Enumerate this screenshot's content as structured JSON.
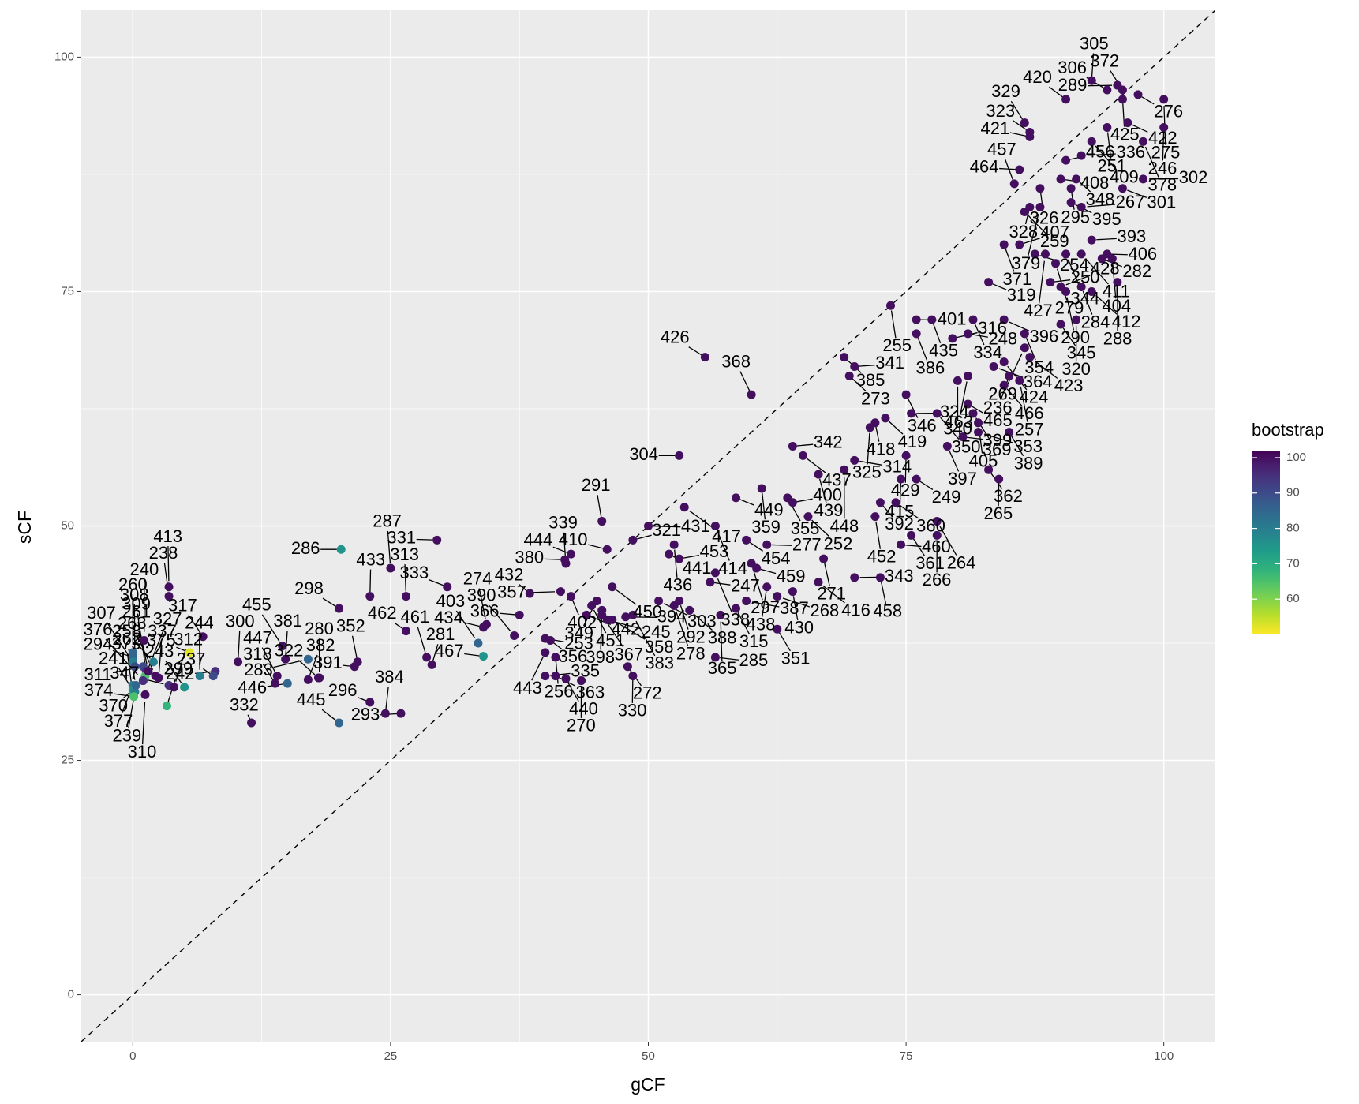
{
  "chart_data": {
    "type": "scatter",
    "x_label": "gCF",
    "y_label": "sCF",
    "xlim": [
      -5,
      105
    ],
    "ylim": [
      -5,
      105
    ],
    "xticks": [
      0,
      25,
      50,
      75,
      100
    ],
    "yticks": [
      0,
      25,
      50,
      75,
      100
    ],
    "grid": true,
    "identity_line": true,
    "colormap": "viridis",
    "colorbar": {
      "title": "bootstrap",
      "lim": [
        50,
        102
      ],
      "ticks": [
        60,
        70,
        80,
        90,
        100
      ]
    },
    "point_labels": [
      "294",
      "307",
      "308",
      "260",
      "377",
      "241",
      "373",
      "239",
      "374",
      "262",
      "240",
      "311",
      "309",
      "413",
      "375",
      "258",
      "238",
      "327",
      "370",
      "263",
      "299",
      "310",
      "376",
      "261",
      "337",
      "347",
      "243",
      "312",
      "242",
      "237",
      "244",
      "300",
      "317",
      "455",
      "381",
      "283",
      "322",
      "318",
      "382",
      "446",
      "447",
      "332",
      "286",
      "298",
      "287",
      "433",
      "391",
      "462",
      "313",
      "331",
      "333",
      "352",
      "384",
      "296",
      "445",
      "280",
      "293",
      "467",
      "461",
      "281",
      "434",
      "274",
      "403",
      "366",
      "432",
      "390",
      "443",
      "253",
      "356",
      "256",
      "335",
      "363",
      "440",
      "270",
      "380",
      "402",
      "339",
      "357",
      "442",
      "451",
      "349",
      "444",
      "450",
      "291",
      "321",
      "410",
      "367",
      "398",
      "245",
      "358",
      "383",
      "394",
      "303",
      "272",
      "330",
      "431",
      "417",
      "436",
      "453",
      "441",
      "292",
      "278",
      "285",
      "388",
      "338",
      "247",
      "449",
      "454",
      "365",
      "387",
      "315",
      "414",
      "304",
      "426",
      "368",
      "359",
      "400",
      "355",
      "297",
      "277",
      "459",
      "351",
      "438",
      "268",
      "416",
      "430",
      "342",
      "437",
      "439",
      "448",
      "314",
      "252",
      "271",
      "343",
      "392",
      "452",
      "458",
      "385",
      "273",
      "418",
      "341",
      "419",
      "255",
      "325",
      "324",
      "346",
      "415",
      "460",
      "360",
      "361",
      "429",
      "249",
      "350",
      "340",
      "399",
      "397",
      "264",
      "266",
      "401",
      "386",
      "435",
      "316",
      "248",
      "334",
      "463",
      "364",
      "369",
      "405",
      "353",
      "465",
      "362",
      "265",
      "389",
      "466",
      "236",
      "319",
      "396",
      "354",
      "269",
      "423",
      "424",
      "257",
      "407",
      "371",
      "259",
      "328",
      "254",
      "279",
      "427",
      "428",
      "345",
      "290",
      "320",
      "250",
      "412",
      "404",
      "393",
      "282",
      "284",
      "288",
      "406",
      "411",
      "344",
      "408",
      "464",
      "457",
      "295",
      "267",
      "395",
      "326",
      "421",
      "323",
      "348",
      "379",
      "336",
      "409",
      "251",
      "456",
      "420",
      "329",
      "305",
      "306",
      "372",
      "425",
      "289",
      "276",
      "275",
      "246",
      "422",
      "301",
      "378",
      "302"
    ],
    "x": [
      0,
      0,
      0.2,
      0,
      0,
      0,
      0,
      0.2,
      0.1,
      0.3,
      1.1,
      1,
      1.3,
      3.5,
      5.5,
      2,
      3.5,
      1.2,
      1,
      2.2,
      3.3,
      1.2,
      1,
      1.5,
      2.5,
      3.5,
      5,
      4,
      8,
      7.8,
      6.5,
      10.2,
      6.8,
      14.5,
      14.8,
      17,
      18,
      13.8,
      17,
      15,
      14,
      11.5,
      20.2,
      20,
      25,
      23,
      21.5,
      26.5,
      26.5,
      29.5,
      30.5,
      21.8,
      24.5,
      23,
      20,
      18.1,
      26,
      34,
      28.5,
      29,
      34,
      34.3,
      33.5,
      37.5,
      38.5,
      37,
      40,
      40,
      40.5,
      41,
      40,
      41,
      42,
      43.5,
      41.9,
      42.5,
      42,
      41.5,
      44,
      44.5,
      45,
      42.5,
      46.5,
      45.5,
      48.5,
      46,
      45.5,
      45.5,
      46,
      46.5,
      48.5,
      47.8,
      51,
      48,
      48.5,
      50,
      53.5,
      52.5,
      53,
      52,
      53,
      52.5,
      56.5,
      54,
      56.5,
      56,
      58.5,
      59.5,
      57,
      59.5,
      58.5,
      56.5,
      53,
      55.5,
      60,
      61,
      64,
      63.5,
      60,
      61.5,
      60.5,
      62.5,
      61.5,
      62.5,
      66.5,
      64,
      64,
      65,
      66.5,
      69,
      70,
      65.5,
      67,
      70,
      72.5,
      72,
      72.5,
      69,
      69.5,
      72,
      70,
      73,
      73.5,
      71.5,
      75.5,
      75,
      74.5,
      74.5,
      74,
      75.5,
      75,
      76,
      78,
      80,
      80.5,
      79,
      78,
      78,
      76,
      76,
      77.5,
      79.5,
      81,
      81.5,
      81,
      83.5,
      81.5,
      82,
      82,
      81,
      83,
      84,
      85,
      84.5,
      85,
      83,
      84.5,
      86.5,
      86.5,
      87,
      84.5,
      86,
      86,
      84.5,
      86.5,
      87,
      87.5,
      89.5,
      88.5,
      90,
      90,
      90.5,
      91.5,
      89,
      93,
      95,
      93,
      94,
      92,
      95.5,
      94.5,
      92,
      90.5,
      90,
      86,
      85.5,
      91,
      92,
      91,
      88,
      87,
      87,
      91.5,
      88,
      92,
      93,
      94.5,
      90.5,
      90.5,
      86.5,
      93,
      94.5,
      96,
      96,
      95.5,
      97.5,
      100,
      100,
      96.5,
      96,
      98,
      98
    ],
    "y": [
      36,
      35.5,
      35,
      36.5,
      33,
      32.5,
      32,
      32.3,
      31.8,
      33,
      37.8,
      35,
      34.5,
      43.5,
      36.5,
      35.5,
      42.5,
      34,
      33.5,
      34,
      30.8,
      32,
      33.5,
      34.5,
      33.8,
      33,
      32.8,
      32.8,
      34.5,
      34,
      34,
      35.5,
      38.2,
      37.2,
      35.8,
      35.8,
      33.8,
      33.2,
      33.6,
      33.2,
      34,
      29,
      47.5,
      41.2,
      45.5,
      42.5,
      35,
      38.8,
      42.5,
      48.5,
      43.5,
      35.5,
      30,
      31.2,
      29,
      33.8,
      30,
      36.1,
      36,
      35.2,
      39.2,
      39.5,
      37.5,
      40.5,
      42.8,
      38.3,
      36.5,
      38,
      37.8,
      36,
      34,
      34,
      33.7,
      33.5,
      46.4,
      42.5,
      46,
      43,
      40.5,
      41.5,
      42,
      47,
      43.5,
      50.5,
      48.5,
      47.5,
      40.5,
      41,
      40,
      40,
      40.5,
      40.3,
      42,
      35,
      34,
      50,
      52,
      48,
      46.5,
      47,
      42,
      41.5,
      36,
      41,
      45,
      44,
      53,
      48.5,
      40.5,
      42,
      41.2,
      50,
      57.5,
      68,
      64,
      54,
      52.5,
      53,
      46,
      48,
      45.5,
      39,
      43.5,
      42.5,
      44,
      43,
      58.5,
      57.5,
      55.5,
      56,
      57,
      51,
      46.5,
      44.5,
      52.5,
      51,
      44.5,
      68,
      66,
      61,
      67,
      61.5,
      73.5,
      60.5,
      62,
      64,
      55,
      48,
      52.5,
      49,
      57.5,
      55,
      62,
      65.5,
      59.5,
      58.5,
      50.5,
      49,
      72,
      70.5,
      72,
      70,
      70.5,
      72,
      66,
      67,
      62,
      61,
      60,
      63,
      56,
      55,
      60,
      65,
      66,
      76,
      72,
      70.5,
      69,
      68,
      67.5,
      65.5,
      80,
      80,
      83.5,
      84,
      79,
      78,
      79,
      75.5,
      71.5,
      75,
      72,
      76,
      75,
      78.5,
      80.5,
      78.5,
      75.5,
      76,
      79,
      79,
      79,
      87,
      88,
      86.5,
      86,
      84,
      84.5,
      86,
      91.5,
      92,
      87,
      84,
      89.5,
      91,
      92.5,
      89,
      95.5,
      93,
      97.5,
      96.5,
      96.5,
      95.5,
      97,
      96,
      95.5,
      92.5,
      93,
      86,
      91,
      87
    ],
    "bootstrap": [
      85,
      80,
      90,
      85,
      80,
      75,
      70,
      80,
      65,
      85,
      100,
      90,
      95,
      100,
      52,
      80,
      100,
      65,
      60,
      100,
      68,
      100,
      95,
      100,
      100,
      95,
      75,
      100,
      95,
      90,
      80,
      100,
      100,
      100,
      100,
      85,
      100,
      100,
      100,
      85,
      100,
      100,
      75,
      100,
      100,
      100,
      100,
      100,
      100,
      100,
      100,
      100,
      100,
      100,
      85,
      100,
      100,
      75,
      100,
      100,
      100,
      100,
      85,
      100,
      100,
      100,
      100,
      100,
      100,
      100,
      100,
      100,
      100,
      100,
      100,
      100,
      100,
      100,
      100,
      100,
      100,
      100,
      100,
      100,
      100,
      100,
      100,
      100,
      100,
      100,
      100,
      100,
      100,
      100,
      100,
      100,
      100,
      100,
      100,
      100,
      100,
      100,
      100,
      100,
      100,
      100,
      100,
      100,
      100,
      100,
      100,
      100,
      100,
      100,
      100,
      100,
      100,
      100,
      100,
      100,
      100,
      100,
      100,
      100,
      100,
      100,
      100,
      100,
      100,
      100,
      100,
      100,
      100,
      100,
      100,
      100,
      100,
      100,
      100,
      100,
      100,
      100,
      100,
      100,
      100,
      100,
      100,
      100,
      100,
      100,
      100,
      100,
      100,
      100,
      100,
      100,
      100,
      100,
      100,
      100,
      100,
      100,
      100,
      100,
      100,
      100,
      100,
      100,
      100,
      100,
      100,
      100,
      100,
      100,
      100,
      100,
      100,
      100,
      100,
      100,
      100,
      100,
      100,
      100,
      100,
      100,
      100,
      100,
      100,
      100,
      100,
      100,
      100,
      100,
      100,
      100,
      100,
      100,
      100,
      100,
      100,
      100,
      100,
      100,
      100,
      100,
      100,
      100,
      100,
      100,
      100,
      100,
      100,
      100,
      100,
      100,
      100,
      100,
      100,
      100,
      100,
      100,
      100,
      100,
      100,
      100,
      100,
      100,
      100,
      100,
      100,
      100
    ]
  }
}
